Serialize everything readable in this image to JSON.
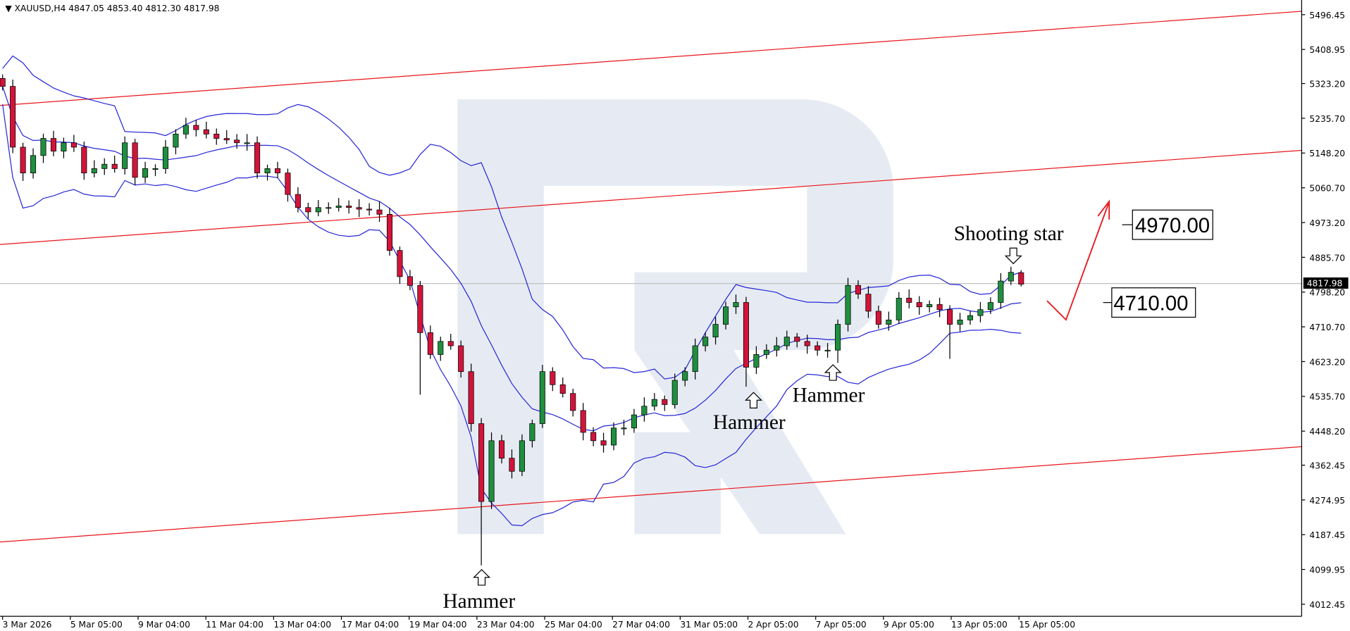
{
  "header": {
    "symbol": "XAUUSD,H4",
    "ohlc": "4847.05 4853.40 4812.30 4817.98"
  },
  "colors": {
    "bull": "#1f8f3f",
    "bear": "#d2143a",
    "bands": "#2727d6",
    "channel": "#e8161a",
    "forecast": "#e8161a",
    "watermark": "#e6ebf3"
  },
  "chart_data": {
    "type": "candlestick",
    "title": "",
    "symbol": "XAUUSD",
    "timeframe": "H4",
    "ylim": [
      4012.45,
      5496.45
    ],
    "grid": false,
    "y_ticks": [
      "5496.45",
      "5408.95",
      "5323.20",
      "5235.70",
      "5148.20",
      "5060.70",
      "4973.20",
      "4885.70",
      "4798.20",
      "4710.70",
      "4623.20",
      "4535.70",
      "4448.20",
      "4362.45",
      "4274.95",
      "4187.45",
      "4099.95",
      "4012.45"
    ],
    "x_ticks": [
      "3 Mar 2026",
      "5 Mar 05:00",
      "9 Mar 04:00",
      "11 Mar 04:00",
      "13 Mar 04:00",
      "17 Mar 04:00",
      "19 Mar 04:00",
      "23 Mar 04:00",
      "25 Mar 04:00",
      "27 Mar 04:00",
      "31 Mar 05:00",
      "2 Apr 05:00",
      "7 Apr 05:00",
      "9 Apr 05:00",
      "13 Apr 05:00",
      "15 Apr 05:00"
    ],
    "closes": [
      5316,
      5163,
      5098,
      5142,
      5185,
      5153,
      5174,
      5163,
      5098,
      5109,
      5120,
      5109,
      5174,
      5087,
      5109,
      5109,
      5163,
      5196,
      5218,
      5207,
      5196,
      5185,
      5181,
      5174,
      5174,
      5098,
      5109,
      5098,
      5044,
      5011,
      5000,
      5011,
      5011,
      5015,
      5011,
      5007,
      5005,
      4994,
      4903,
      4837,
      4815,
      4696,
      4641,
      4674,
      4663,
      4598,
      4467,
      4271,
      4424,
      4380,
      4347,
      4424,
      4467,
      4598,
      4565,
      4543,
      4500,
      4445,
      4424,
      4413,
      4456,
      4456,
      4489,
      4511,
      4528,
      4515,
      4576,
      4598,
      4663,
      4685,
      4717,
      4761,
      4772,
      4609,
      4641,
      4652,
      4663,
      4685,
      4674,
      4663,
      4652,
      4652,
      4717,
      4815,
      4793,
      4750,
      4717,
      4728,
      4783,
      4772,
      4761,
      4767,
      4754,
      4717,
      4728,
      4739,
      4754,
      4772,
      4826,
      4848
    ],
    "last_bar": {
      "open": 4847.05,
      "high": 4853.4,
      "low": 4812.3,
      "close": 4817.98
    },
    "notable_lows": {
      "47": 4110,
      "41": 4540,
      "73": 4560,
      "82": 4620,
      "93": 4630
    },
    "current_price": "4817.98",
    "indicators": [
      "Bollinger Bands"
    ],
    "channel_lines": [
      {
        "start": 5268,
        "end": 5505
      },
      {
        "start": 4918,
        "end": 5155
      },
      {
        "start": 4169,
        "end": 4409
      }
    ],
    "annotations": [
      {
        "text": "Shooting star",
        "arrow": "down"
      },
      {
        "text": "Hammer",
        "arrow": "up"
      },
      {
        "text": "Hammer",
        "arrow": "up"
      },
      {
        "text": "Hammer",
        "arrow": "up"
      }
    ],
    "levels": [
      {
        "label": "4970.00",
        "value": 4970.0
      },
      {
        "label": "4710.00",
        "value": 4710.0
      }
    ]
  }
}
